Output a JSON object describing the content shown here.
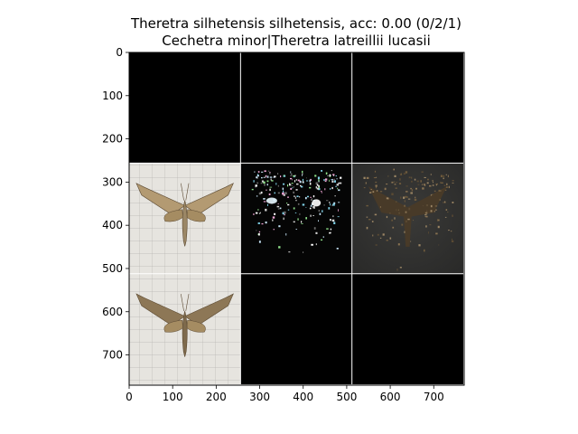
{
  "figure": {
    "title_line_1": "Theretra silhetensis silhetensis, acc: 0.00 (0/2/1)",
    "title_line_2": "Cechetra minor|Theretra latreillii lucasii"
  },
  "chart_data": {
    "type": "image-grid",
    "title": "Theretra silhetensis silhetensis, acc: 0.00 (0/2/1)",
    "subtitle": "Cechetra minor|Theretra latreillii lucasii",
    "rows": 3,
    "cols": 3,
    "tile_size": 256,
    "xlim": [
      0,
      770
    ],
    "ylim": [
      770,
      0
    ],
    "x_ticks": [
      0,
      100,
      200,
      300,
      400,
      500,
      600,
      700
    ],
    "y_ticks": [
      0,
      100,
      200,
      300,
      400,
      500,
      600,
      700
    ],
    "tiles": [
      {
        "row": 0,
        "col": 0,
        "content": "black"
      },
      {
        "row": 0,
        "col": 1,
        "content": "black"
      },
      {
        "row": 0,
        "col": 2,
        "content": "black"
      },
      {
        "row": 1,
        "col": 0,
        "content": "moth-photo"
      },
      {
        "row": 1,
        "col": 1,
        "content": "saliency-sparse"
      },
      {
        "row": 1,
        "col": 2,
        "content": "saliency-dim"
      },
      {
        "row": 2,
        "col": 0,
        "content": "moth-photo"
      },
      {
        "row": 2,
        "col": 1,
        "content": "black"
      },
      {
        "row": 2,
        "col": 2,
        "content": "black"
      }
    ],
    "colors": {
      "background": "#000000",
      "separator": "#ffffff",
      "paper": "#e9e7e3",
      "moth": "#8a7656"
    }
  }
}
